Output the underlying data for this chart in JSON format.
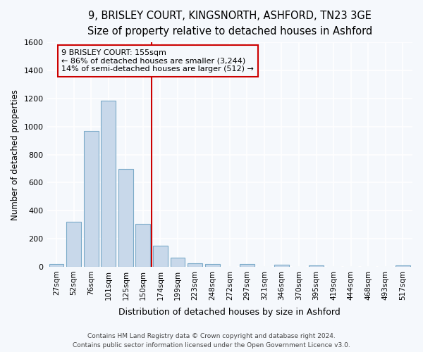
{
  "title1": "9, BRISLEY COURT, KINGSNORTH, ASHFORD, TN23 3GE",
  "title2": "Size of property relative to detached houses in Ashford",
  "xlabel": "Distribution of detached houses by size in Ashford",
  "ylabel": "Number of detached properties",
  "footer1": "Contains HM Land Registry data © Crown copyright and database right 2024.",
  "footer2": "Contains public sector information licensed under the Open Government Licence v3.0.",
  "categories": [
    "27sqm",
    "52sqm",
    "76sqm",
    "101sqm",
    "125sqm",
    "150sqm",
    "174sqm",
    "199sqm",
    "223sqm",
    "248sqm",
    "272sqm",
    "297sqm",
    "321sqm",
    "346sqm",
    "370sqm",
    "395sqm",
    "419sqm",
    "444sqm",
    "468sqm",
    "493sqm",
    "517sqm"
  ],
  "values": [
    20,
    320,
    970,
    1185,
    700,
    305,
    150,
    65,
    25,
    20,
    0,
    20,
    0,
    15,
    0,
    10,
    0,
    0,
    0,
    0,
    10
  ],
  "bar_color": "#c8d8ea",
  "bar_edge_color": "#7aaac8",
  "highlight_index": 5,
  "highlight_color": "#cc0000",
  "property_label": "9 BRISLEY COURT: 155sqm",
  "annotation_line1": "← 86% of detached houses are smaller (3,244)",
  "annotation_line2": "14% of semi-detached houses are larger (512) →",
  "annotation_box_color": "#cc0000",
  "ylim": [
    0,
    1600
  ],
  "yticks": [
    0,
    200,
    400,
    600,
    800,
    1000,
    1200,
    1400,
    1600
  ],
  "bg_color": "#f5f8fc",
  "grid_color": "#e0e8f0",
  "title1_fontsize": 10.5,
  "title2_fontsize": 9.5,
  "figwidth": 6.0,
  "figheight": 5.0,
  "dpi": 100
}
